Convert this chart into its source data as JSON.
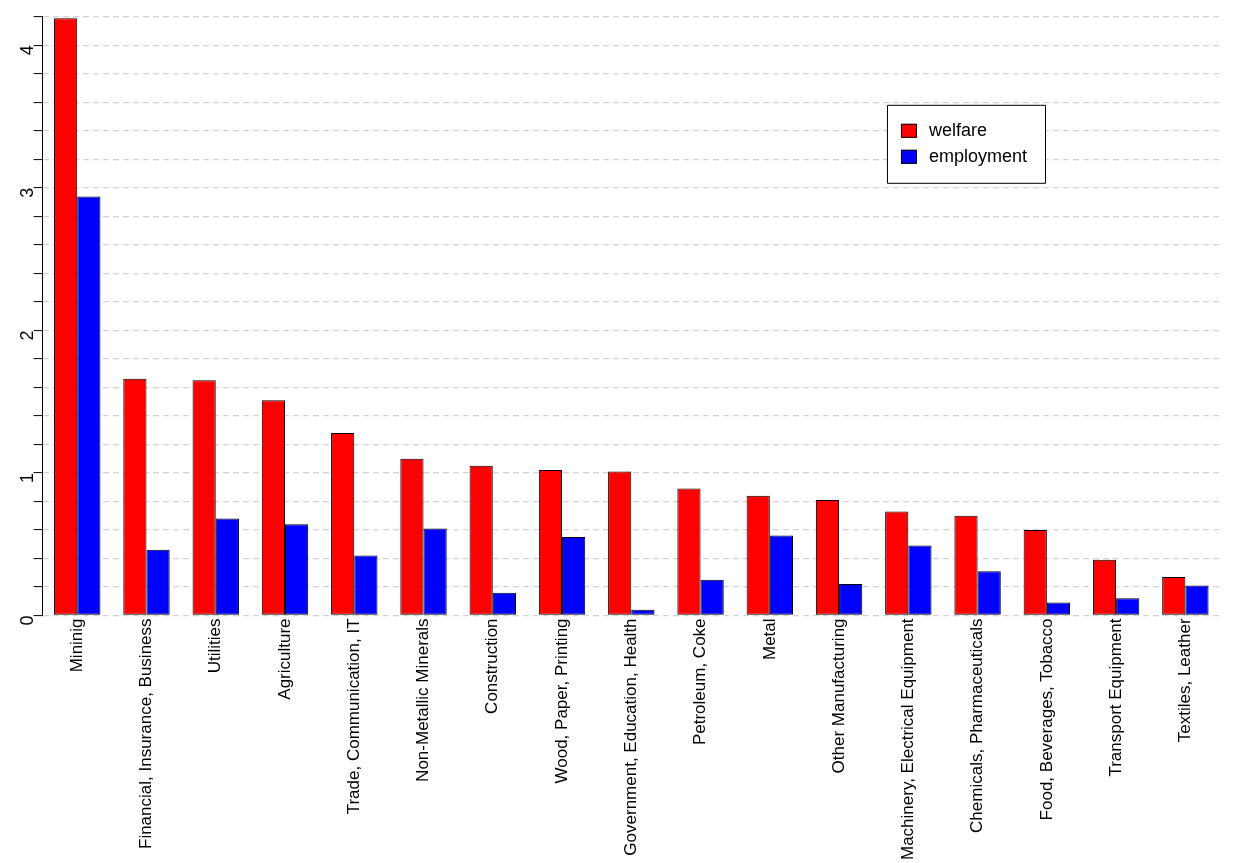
{
  "chart_data": {
    "type": "bar",
    "categories": [
      "Mininig",
      "Financial, Insurance, Business",
      "Utilities",
      "Agriculture",
      "Trade, Communication, IT",
      "Non-Metallic Minerals",
      "Construction",
      "Wood, Paper, Printing",
      "Government, Education, Health",
      "Petroleum, Coke",
      "Metal",
      "Other Manufacturing",
      "Machinery, Electrical Equipment",
      "Chemicals, Pharmaceuticals",
      "Food, Beverages, Tobacco",
      "Transport Equipment",
      "Textiles, Leather"
    ],
    "series": [
      {
        "name": "welfare",
        "color": "#ff0000",
        "values": [
          4.19,
          1.66,
          1.65,
          1.51,
          1.28,
          1.1,
          1.05,
          1.02,
          1.01,
          0.89,
          0.84,
          0.81,
          0.73,
          0.7,
          0.6,
          0.39,
          0.27
        ]
      },
      {
        "name": "employment",
        "color": "#0000ff",
        "values": [
          2.94,
          0.46,
          0.68,
          0.64,
          0.42,
          0.61,
          0.16,
          0.55,
          0.04,
          0.25,
          0.56,
          0.22,
          0.49,
          0.31,
          0.09,
          0.12,
          0.21
        ]
      }
    ],
    "ylim": [
      0,
      4.2
    ],
    "yticks": [
      0,
      {
        "value": 0.2,
        "label": null
      },
      {
        "value": 0.4,
        "label": null
      },
      {
        "value": 0.6,
        "label": null
      },
      {
        "value": 0.8,
        "label": null
      },
      1,
      {
        "value": 1.2,
        "label": null
      },
      {
        "value": 1.4,
        "label": null
      },
      {
        "value": 1.6,
        "label": null
      },
      {
        "value": 1.8,
        "label": null
      },
      2,
      {
        "value": 2.2,
        "label": null
      },
      {
        "value": 2.4,
        "label": null
      },
      {
        "value": 2.6,
        "label": null
      },
      {
        "value": 2.8,
        "label": null
      },
      3,
      {
        "value": 3.2,
        "label": null
      },
      {
        "value": 3.4,
        "label": null
      },
      {
        "value": 3.6,
        "label": null
      },
      {
        "value": 3.8,
        "label": null
      },
      4,
      {
        "value": 4.2,
        "label": null
      }
    ],
    "grid": "y",
    "legend": "top right"
  }
}
